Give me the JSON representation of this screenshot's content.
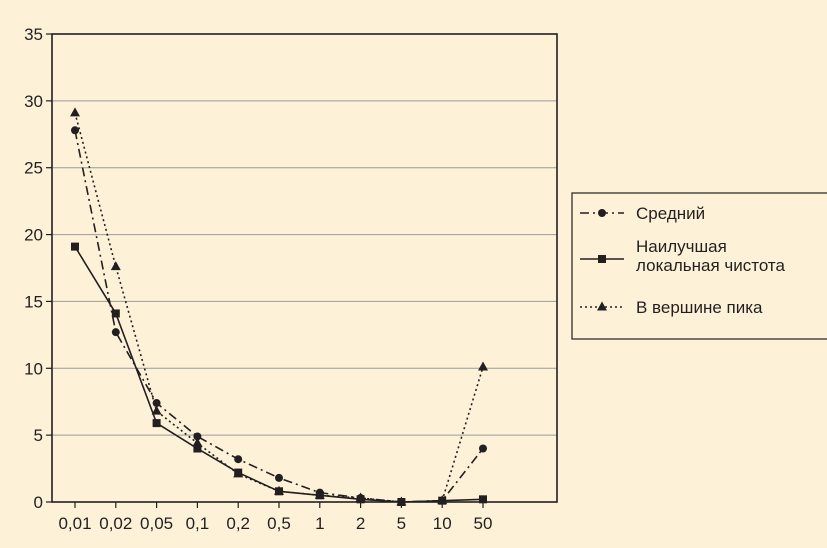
{
  "chart_data": {
    "type": "line",
    "title": "",
    "xlabel": "",
    "ylabel": "",
    "categories": [
      "0,01",
      "0,02",
      "0,05",
      "0,1",
      "0,2",
      "0,5",
      "1",
      "2",
      "5",
      "10",
      "50"
    ],
    "ylim": [
      0,
      35
    ],
    "yticks": [
      "0",
      "5",
      "10",
      "15",
      "20",
      "25",
      "30",
      "35"
    ],
    "grid": "horizontal",
    "legend_position": "right",
    "series": [
      {
        "name": "Средний",
        "style": "dash-dot",
        "marker": "circle",
        "values": [
          27.8,
          12.7,
          7.4,
          4.9,
          3.2,
          1.8,
          0.7,
          0.3,
          0.0,
          0.1,
          4.0
        ]
      },
      {
        "name": "Наилучшая локальная чистота",
        "name_lines": [
          "Наилучшая",
          "локальная чистота"
        ],
        "style": "solid",
        "marker": "square",
        "values": [
          19.1,
          14.1,
          5.9,
          4.0,
          2.2,
          0.8,
          0.5,
          0.2,
          0.0,
          0.1,
          0.2
        ]
      },
      {
        "name": "В вершине пика",
        "style": "dotted",
        "marker": "triangle",
        "values": [
          29.1,
          17.6,
          6.8,
          4.4,
          2.1,
          0.8,
          0.5,
          0.3,
          0.0,
          0.1,
          10.1
        ]
      }
    ],
    "colors": {
      "background": "#fdf2d8",
      "plot": "#fdf2d8",
      "ink": "#231f20",
      "grid": "#9a9a9a"
    }
  }
}
